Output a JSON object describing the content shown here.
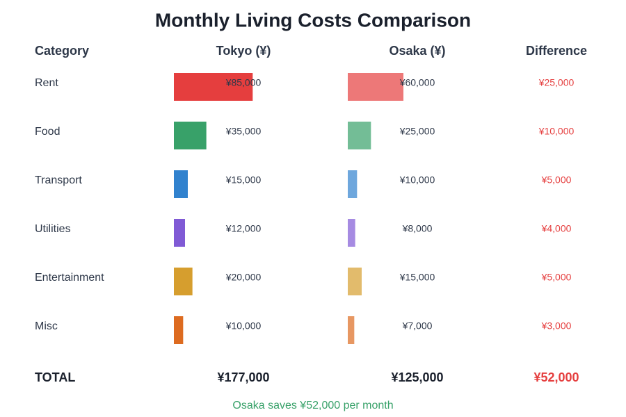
{
  "header": {
    "title": "Monthly Living Costs Comparison"
  },
  "columns": [
    "Category",
    "Tokyo (¥)",
    "Osaka (¥)",
    "Difference"
  ],
  "rows": [
    {
      "category": "Rent",
      "color": "#e53e3e",
      "tokyo": {
        "value": 85000,
        "label": "¥85,000"
      },
      "osaka": {
        "value": 60000,
        "label": "¥60,000"
      },
      "difference": {
        "value": 25000,
        "label": "¥25,000"
      }
    },
    {
      "category": "Food",
      "color": "#38a169",
      "tokyo": {
        "value": 35000,
        "label": "¥35,000"
      },
      "osaka": {
        "value": 25000,
        "label": "¥25,000"
      },
      "difference": {
        "value": 10000,
        "label": "¥10,000"
      }
    },
    {
      "category": "Transport",
      "color": "#3182ce",
      "tokyo": {
        "value": 15000,
        "label": "¥15,000"
      },
      "osaka": {
        "value": 10000,
        "label": "¥10,000"
      },
      "difference": {
        "value": 5000,
        "label": "¥5,000"
      }
    },
    {
      "category": "Utilities",
      "color": "#805ad5",
      "tokyo": {
        "value": 12000,
        "label": "¥12,000"
      },
      "osaka": {
        "value": 8000,
        "label": "¥8,000"
      },
      "difference": {
        "value": 4000,
        "label": "¥4,000"
      }
    },
    {
      "category": "Entertainment",
      "color": "#d69e2e",
      "tokyo": {
        "value": 20000,
        "label": "¥20,000"
      },
      "osaka": {
        "value": 15000,
        "label": "¥15,000"
      },
      "difference": {
        "value": 5000,
        "label": "¥5,000"
      }
    },
    {
      "category": "Misc",
      "color": "#dd6b20",
      "tokyo": {
        "value": 10000,
        "label": "¥10,000"
      },
      "osaka": {
        "value": 7000,
        "label": "¥7,000"
      },
      "difference": {
        "value": 3000,
        "label": "¥3,000"
      }
    }
  ],
  "total": {
    "label": "TOTAL",
    "tokyo": {
      "value": 177000,
      "label": "¥177,000"
    },
    "osaka": {
      "value": 125000,
      "label": "¥125,000"
    },
    "difference": {
      "value": 52000,
      "label": "¥52,000"
    }
  },
  "footer": "Osaka saves ¥52,000 per month"
}
